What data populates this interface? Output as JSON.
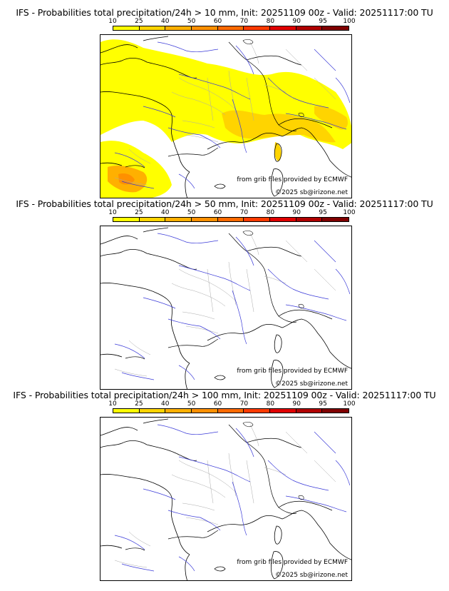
{
  "colorscale": {
    "ticks": [
      "10",
      "25",
      "40",
      "50",
      "60",
      "70",
      "80",
      "90",
      "95",
      "100"
    ],
    "colors": [
      "#ffff00",
      "#ffd400",
      "#ffb000",
      "#ff9000",
      "#ff6a00",
      "#ff3a00",
      "#e00000",
      "#b00000",
      "#800000",
      "#500000"
    ]
  },
  "panels": [
    {
      "title": "IFS - Probabilities total precipitation/24h > 10 mm, Init: 20251109 00z - Valid: 20251117:00 TU",
      "credit_source": "from grib files provided by ECMWF",
      "credit_copyright": "©2025 sb@irizone.net"
    },
    {
      "title": "IFS - Probabilities total precipitation/24h > 50 mm, Init: 20251109 00z - Valid: 20251117:00 TU",
      "credit_source": "from grib files provided by ECMWF",
      "credit_copyright": "©2025 sb@irizone.net"
    },
    {
      "title": "IFS - Probabilities total precipitation/24h > 100 mm, Init: 20251109 00z - Valid: 20251117:00 TU",
      "credit_source": "from grib files provided by ECMWF",
      "credit_copyright": "©2025 sb@irizone.net"
    }
  ],
  "map_colors": {
    "coast": "#000000",
    "rivers": "#3a3ad8",
    "borders": "#aaaaaa",
    "precip_light": "#ffff00",
    "precip_mid": "#ffd400",
    "precip_high": "#ffb000",
    "precip_top": "#ff9000"
  }
}
